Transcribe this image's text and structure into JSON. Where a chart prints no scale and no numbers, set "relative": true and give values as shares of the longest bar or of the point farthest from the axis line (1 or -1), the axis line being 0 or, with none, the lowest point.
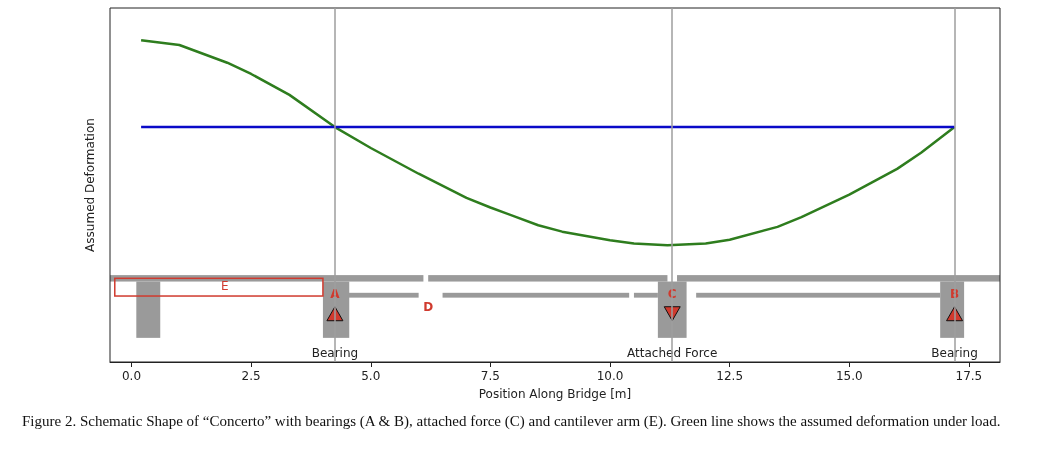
{
  "chart_data": {
    "type": "line",
    "relative": true,
    "xlabel": "Position Along Bridge [m]",
    "ylabel": "Assumed Deformation",
    "xlim": [
      -0.45,
      18.15
    ],
    "xticks": [
      {
        "value": 0,
        "label": "0.0"
      },
      {
        "value": 2.5,
        "label": "2.5"
      },
      {
        "value": 5,
        "label": "5.0"
      },
      {
        "value": 7.5,
        "label": "7.5"
      },
      {
        "value": 10,
        "label": "10.0"
      },
      {
        "value": 12.5,
        "label": "12.5"
      },
      {
        "value": 15,
        "label": "15.0"
      },
      {
        "value": 17.5,
        "label": "17.5"
      }
    ],
    "series": [
      {
        "color": "#2e7d1e",
        "x": [
          0.2,
          1,
          2,
          2.5,
          3.3,
          4.25,
          5,
          6,
          7,
          7.5,
          8.5,
          9,
          10,
          10.5,
          11.2,
          12,
          12.5,
          13.5,
          14,
          15,
          16,
          16.5,
          17.2
        ],
        "values": [
          1.0,
          0.985,
          0.93,
          0.895,
          0.83,
          0.73,
          0.665,
          0.585,
          0.51,
          0.48,
          0.425,
          0.405,
          0.378,
          0.368,
          0.363,
          0.368,
          0.38,
          0.42,
          0.45,
          0.52,
          0.6,
          0.65,
          0.73
        ]
      },
      {
        "color": "#0a0ac8",
        "x": [
          0.2,
          17.2
        ],
        "values": [
          0.73,
          0.73
        ]
      }
    ],
    "ref_lines": [
      {
        "axis": "x",
        "value": 4.25,
        "label": "Bearing",
        "color": "#9e9e9e"
      },
      {
        "axis": "x",
        "value": 11.3,
        "label": "Attached Force",
        "color": "#9e9e9e"
      },
      {
        "axis": "x",
        "value": 17.2,
        "label": "Bearing",
        "color": "#9e9e9e"
      }
    ],
    "annotations": [
      {
        "text": "A",
        "x": 4.25,
        "y": 0.21
      },
      {
        "text": "C",
        "x": 11.3,
        "y": 0.21
      },
      {
        "text": "B",
        "x": 17.2,
        "y": 0.21
      },
      "D",
      "E",
      "Figure 2. Schematic Shape of “Concerto” with bearings (A & B), attached force (C) and cantilever arm (E). Green line shows the assumed deformation under load."
    ],
    "grid": false,
    "marker": "none",
    "line_style": "solid"
  }
}
